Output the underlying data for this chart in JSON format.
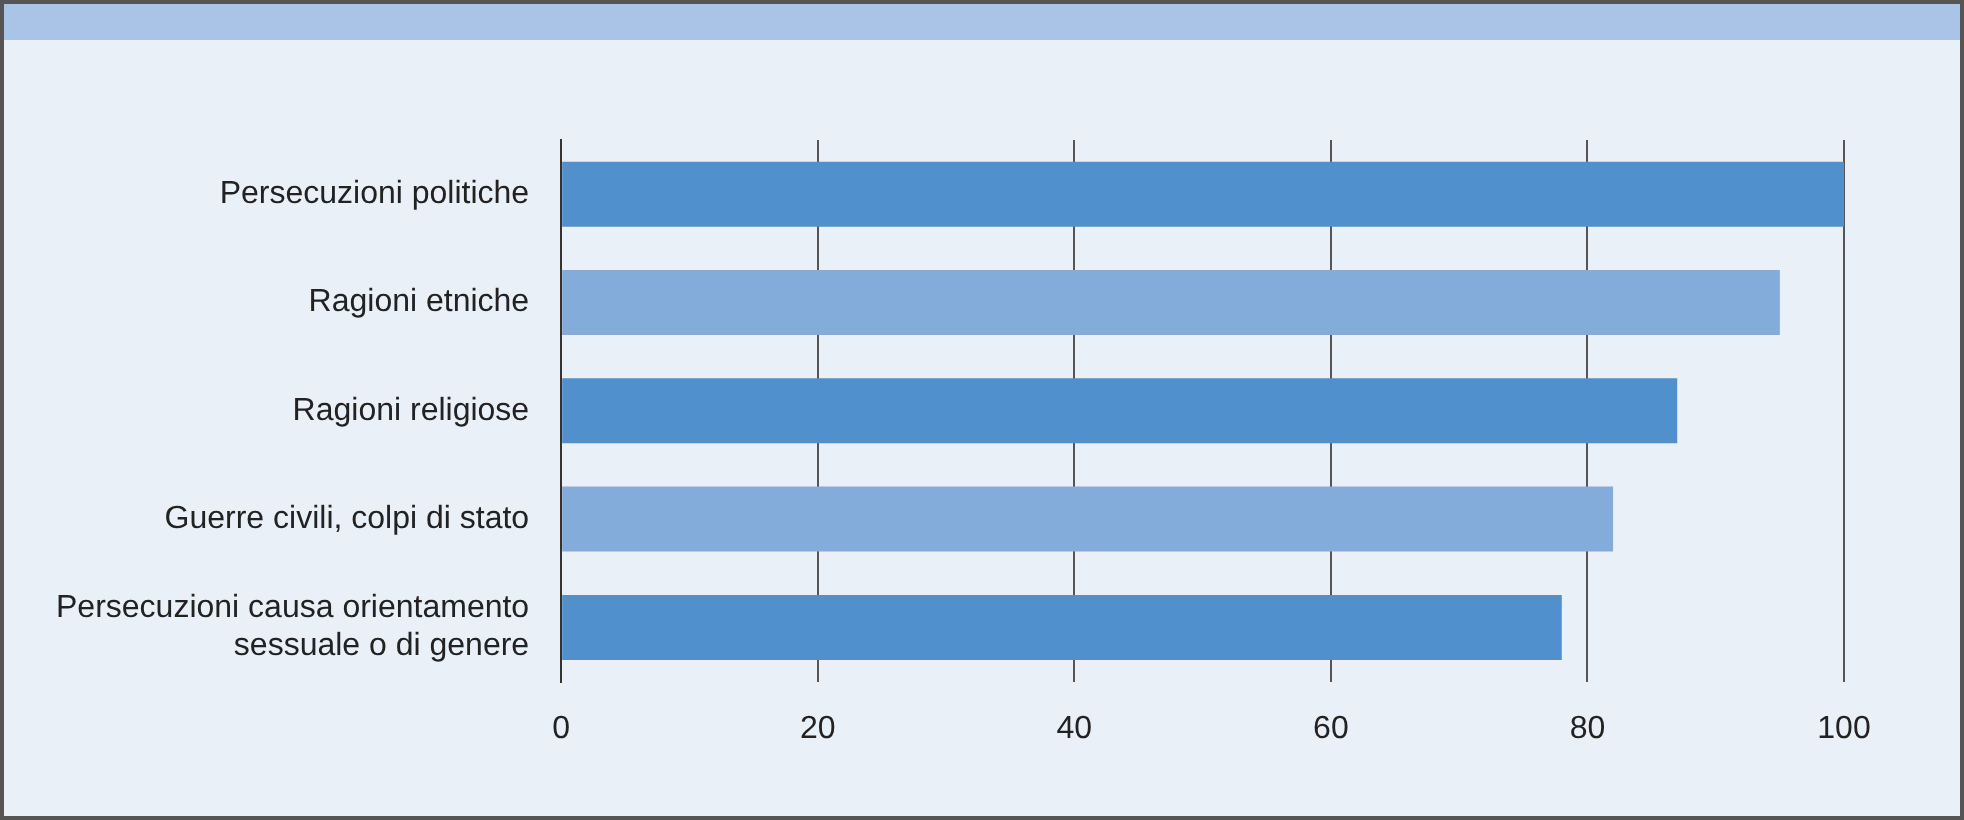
{
  "chart_data": {
    "type": "bar",
    "orientation": "horizontal",
    "categories": [
      "Persecuzioni politiche",
      "Ragioni etniche",
      "Ragioni religiose",
      "Guerre civili, colpi di stato",
      "Persecuzioni causa orientamento sessuale o di genere"
    ],
    "values": [
      100,
      95,
      87,
      82,
      78
    ],
    "colors": [
      "#4f90cd",
      "#84acdb",
      "#4f90cd",
      "#84acdb",
      "#4f90cd"
    ],
    "xlim": [
      0,
      100
    ],
    "xticks": [
      0,
      20,
      40,
      60,
      80,
      100
    ],
    "grid": "x",
    "legend": false
  }
}
